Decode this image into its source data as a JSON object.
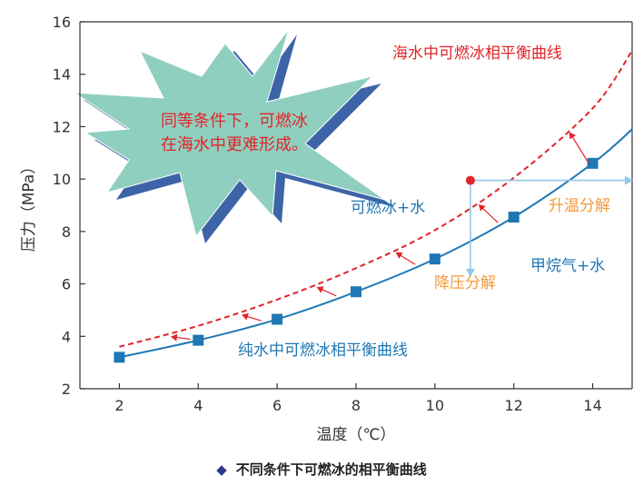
{
  "chart_data": {
    "type": "line",
    "xlabel": "温度（℃）",
    "ylabel": "压力（MPa）",
    "xlim": [
      1,
      15
    ],
    "ylim": [
      2,
      16
    ],
    "xticks": [
      2,
      4,
      6,
      8,
      10,
      12,
      14
    ],
    "yticks": [
      2,
      4,
      6,
      8,
      10,
      12,
      14,
      16
    ],
    "grid": false,
    "series": [
      {
        "name": "纯水中可燃冰相平衡曲线",
        "style": "solid",
        "color": "#1f77b4",
        "marker": "square",
        "x": [
          2,
          4,
          6,
          8,
          10,
          12,
          14,
          15
        ],
        "y": [
          3.2,
          3.85,
          4.65,
          5.7,
          6.95,
          8.55,
          10.6,
          11.9
        ],
        "markers_x": [
          2,
          4,
          6,
          8,
          10,
          12,
          14
        ]
      },
      {
        "name": "海水中可燃冰相平衡曲线",
        "style": "dashed",
        "color": "#e0252b",
        "x": [
          2,
          4,
          6,
          8,
          10,
          12,
          14,
          15
        ],
        "y": [
          3.6,
          4.4,
          5.4,
          6.6,
          8.05,
          10.05,
          12.7,
          14.9
        ]
      }
    ],
    "annotations": {
      "region_hydrate": "可燃冰+水",
      "region_gas": "甲烷气+水",
      "heat_decomp": "升温分解",
      "pressure_decomp": "降压分解",
      "burst_line1": "同等条件下，可燃冰",
      "burst_line2": "在海水中更难形成。",
      "state_point": {
        "x": 10.9,
        "y": 9.95
      }
    },
    "colors": {
      "axis": "#333333",
      "pure": "#1f77b4",
      "sea": "#e0252b",
      "arrow": "#8fc8e8",
      "orange": "#f39a3a",
      "burst_fill": "#8fcfbf",
      "burst_shadow": "#3e64a8",
      "burst_text": "#e0252b",
      "caption_mark": "#2b3a8c"
    }
  },
  "caption": {
    "marker": "◆",
    "text": "不同条件下可燃冰的相平衡曲线"
  }
}
